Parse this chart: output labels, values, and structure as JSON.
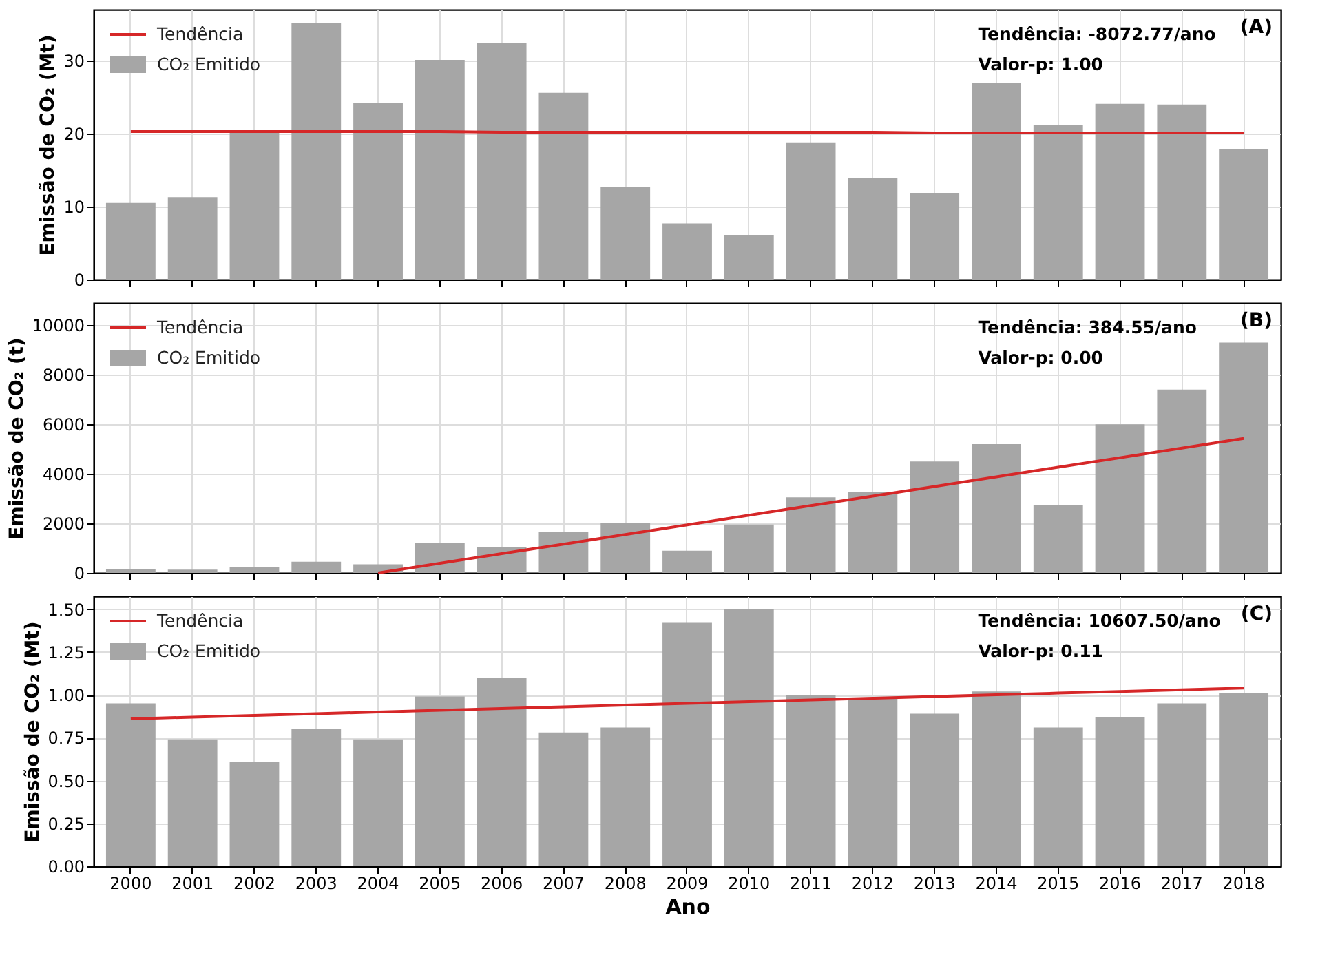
{
  "chart_data": [
    {
      "type": "bar",
      "ylabel": "Emissão de CO₂ (Mt)",
      "categories": [
        "2000",
        "2001",
        "2002",
        "2003",
        "2004",
        "2005",
        "2006",
        "2007",
        "2008",
        "2009",
        "2010",
        "2011",
        "2012",
        "2013",
        "2014",
        "2015",
        "2016",
        "2017",
        "2018"
      ],
      "series": [
        {
          "name": "Tendência",
          "type": "line",
          "color": "#d62728",
          "values": [
            20.3,
            20.3,
            20.3,
            20.3,
            20.3,
            20.3,
            20.2,
            20.2,
            20.2,
            20.2,
            20.2,
            20.2,
            20.2,
            20.1,
            20.1,
            20.1,
            20.1,
            20.1,
            20.1
          ]
        },
        {
          "name": "CO₂ Emitido",
          "type": "bar",
          "color": "#a6a6a6",
          "values": [
            10.5,
            11.3,
            20.3,
            35.2,
            24.2,
            30.1,
            32.4,
            25.6,
            12.7,
            7.7,
            6.1,
            18.8,
            13.9,
            11.9,
            27.0,
            21.2,
            24.1,
            24.0,
            17.9
          ]
        }
      ],
      "ylim": [
        0,
        37
      ],
      "yticks": [
        0,
        10,
        20,
        30
      ],
      "grid": true,
      "legend": "top left",
      "tick_labels": "y",
      "annotations": [
        "Tendência: -8072.77/ano",
        "Valor-p: 1.00",
        "(A)"
      ]
    },
    {
      "type": "bar",
      "ylabel": "Emissão de CO₂ (t)",
      "categories": [
        "2000",
        "2001",
        "2002",
        "2003",
        "2004",
        "2005",
        "2006",
        "2007",
        "2008",
        "2009",
        "2010",
        "2011",
        "2012",
        "2013",
        "2014",
        "2015",
        "2016",
        "2017",
        "2018"
      ],
      "series": [
        {
          "name": "Tendência",
          "type": "line",
          "color": "#d62728",
          "values": [
            null,
            null,
            null,
            null,
            0,
            390,
            780,
            1160,
            1550,
            1940,
            2330,
            2720,
            3100,
            3490,
            3880,
            4270,
            4650,
            5040,
            5430
          ]
        },
        {
          "name": "CO₂ Emitido",
          "type": "bar",
          "color": "#a6a6a6",
          "values": [
            150,
            130,
            250,
            450,
            350,
            1200,
            1050,
            1650,
            2000,
            900,
            1950,
            3050,
            3250,
            4500,
            5200,
            2750,
            6000,
            7400,
            9300
          ]
        }
      ],
      "ylim": [
        0,
        10900
      ],
      "yticks": [
        0,
        2000,
        4000,
        6000,
        8000,
        10000
      ],
      "grid": true,
      "legend": "top left",
      "tick_labels": "y",
      "annotations": [
        "Tendência: 384.55/ano",
        "Valor-p: 0.00",
        "(B)"
      ]
    },
    {
      "type": "bar",
      "xlabel": "Ano",
      "ylabel": "Emissão de CO₂ (Mt)",
      "categories": [
        "2000",
        "2001",
        "2002",
        "2003",
        "2004",
        "2005",
        "2006",
        "2007",
        "2008",
        "2009",
        "2010",
        "2011",
        "2012",
        "2013",
        "2014",
        "2015",
        "2016",
        "2017",
        "2018"
      ],
      "series": [
        {
          "name": "Tendência",
          "type": "line",
          "color": "#d62728",
          "values": [
            0.86,
            0.87,
            0.88,
            0.89,
            0.9,
            0.91,
            0.92,
            0.93,
            0.94,
            0.95,
            0.96,
            0.97,
            0.98,
            0.99,
            1.0,
            1.01,
            1.02,
            1.03,
            1.04
          ]
        },
        {
          "name": "CO₂ Emitido",
          "type": "bar",
          "color": "#a6a6a6",
          "values": [
            0.95,
            0.74,
            0.61,
            0.8,
            0.74,
            0.99,
            1.1,
            0.78,
            0.81,
            1.42,
            1.5,
            1.0,
            0.98,
            0.89,
            1.02,
            0.81,
            0.87,
            0.95,
            1.01
          ]
        }
      ],
      "ylim": [
        0,
        1.575
      ],
      "yticks": [
        {
          "value": 0,
          "label": "0.00"
        },
        {
          "value": 0.25,
          "label": "0.25"
        },
        {
          "value": 0.5,
          "label": "0.50"
        },
        {
          "value": 0.75,
          "label": "0.75"
        },
        {
          "value": 1,
          "label": "1.00"
        },
        {
          "value": 1.25,
          "label": "1.25"
        },
        {
          "value": 1.5,
          "label": "1.50"
        }
      ],
      "grid": true,
      "legend": "top left",
      "annotations": [
        "Tendência: 10607.50/ano",
        "Valor-p: 0.11",
        "(C)"
      ]
    }
  ]
}
